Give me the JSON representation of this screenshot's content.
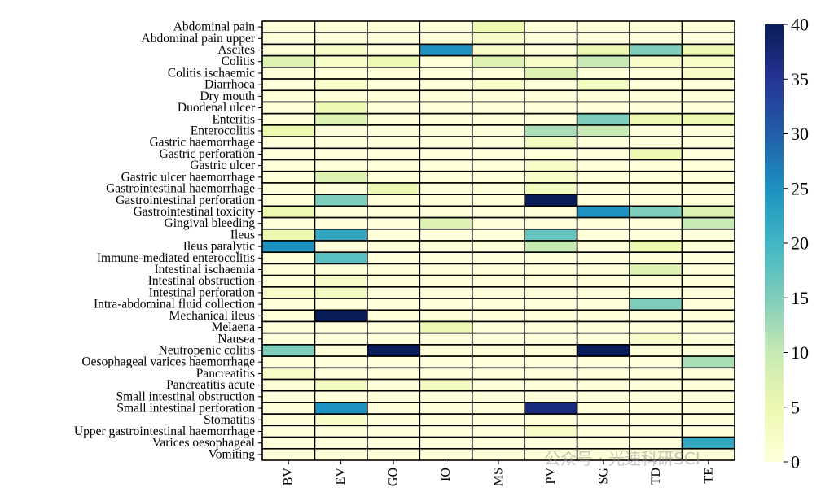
{
  "chart_data": {
    "type": "heatmap",
    "title": "",
    "xlabel": "",
    "ylabel": "",
    "columns": [
      "BV",
      "EV",
      "GO",
      "IO",
      "MS",
      "PV",
      "SG",
      "TD",
      "TE"
    ],
    "rows": [
      "Abdominal pain",
      "Abdominal pain upper",
      "Ascites",
      "Colitis",
      "Colitis ischaemic",
      "Diarrhoea",
      "Dry mouth",
      "Duodenal ulcer",
      "Enteritis",
      "Enterocolitis",
      "Gastric haemorrhage",
      "Gastric perforation",
      "Gastric ulcer",
      "Gastric ulcer haemorrhage",
      "Gastrointestinal haemorrhage",
      "Gastrointestinal perforation",
      "Gastrointestinal toxicity",
      "Gingival bleeding",
      "Ileus",
      "Ileus paralytic",
      "Immune-mediated enterocolitis",
      "Intestinal ischaemia",
      "Intestinal obstruction",
      "Intestinal perforation",
      "Intra-abdominal fluid collection",
      "Mechanical ileus",
      "Melaena",
      "Nausea",
      "Neutropenic colitis",
      "Oesophageal varices haemorrhage",
      "Pancreatitis",
      "Pancreatitis acute",
      "Small intestinal obstruction",
      "Small intestinal perforation",
      "Stomatitis",
      "Upper gastrointestinal haemorrhage",
      "Varices oesophageal",
      "Vomiting"
    ],
    "values": [
      [
        0,
        0,
        0,
        0,
        5,
        0,
        0,
        0,
        0
      ],
      [
        0,
        0,
        0,
        0,
        2,
        0,
        0,
        0,
        0
      ],
      [
        0,
        2,
        0,
        25,
        2,
        0,
        5,
        15,
        5
      ],
      [
        7,
        2,
        5,
        0,
        7,
        2,
        10,
        2,
        2
      ],
      [
        0,
        0,
        0,
        0,
        0,
        7,
        0,
        0,
        2
      ],
      [
        0,
        2,
        0,
        0,
        2,
        0,
        3,
        0,
        0
      ],
      [
        0,
        0,
        0,
        0,
        0,
        0,
        0,
        0,
        0
      ],
      [
        0,
        5,
        0,
        0,
        0,
        0,
        0,
        0,
        0
      ],
      [
        0,
        7,
        0,
        0,
        0,
        0,
        15,
        5,
        5
      ],
      [
        5,
        0,
        0,
        0,
        0,
        12,
        10,
        0,
        0
      ],
      [
        0,
        0,
        0,
        0,
        0,
        3,
        0,
        0,
        0
      ],
      [
        0,
        0,
        0,
        0,
        0,
        0,
        0,
        5,
        0
      ],
      [
        0,
        0,
        0,
        0,
        0,
        2,
        0,
        0,
        0
      ],
      [
        0,
        7,
        0,
        0,
        0,
        2,
        0,
        0,
        0
      ],
      [
        0,
        0,
        5,
        0,
        0,
        3,
        0,
        0,
        0
      ],
      [
        0,
        15,
        0,
        0,
        0,
        40,
        0,
        0,
        0
      ],
      [
        5,
        0,
        0,
        0,
        0,
        0,
        25,
        15,
        7
      ],
      [
        0,
        0,
        0,
        7,
        0,
        0,
        0,
        0,
        10
      ],
      [
        5,
        22,
        0,
        0,
        0,
        17,
        0,
        0,
        0
      ],
      [
        25,
        0,
        0,
        0,
        0,
        10,
        0,
        5,
        0
      ],
      [
        0,
        18,
        0,
        0,
        0,
        0,
        0,
        0,
        0
      ],
      [
        0,
        0,
        0,
        0,
        0,
        0,
        0,
        7,
        0
      ],
      [
        0,
        2,
        0,
        0,
        0,
        0,
        0,
        0,
        0
      ],
      [
        2,
        3,
        0,
        0,
        0,
        0,
        0,
        0,
        0
      ],
      [
        0,
        0,
        0,
        0,
        0,
        0,
        0,
        15,
        0
      ],
      [
        0,
        40,
        0,
        0,
        0,
        0,
        0,
        0,
        0
      ],
      [
        0,
        0,
        0,
        5,
        0,
        0,
        0,
        0,
        0
      ],
      [
        0,
        0,
        0,
        0,
        0,
        0,
        0,
        2,
        0
      ],
      [
        15,
        0,
        40,
        0,
        0,
        0,
        40,
        0,
        0
      ],
      [
        0,
        0,
        0,
        0,
        0,
        0,
        0,
        0,
        12
      ],
      [
        2,
        0,
        0,
        0,
        0,
        0,
        0,
        0,
        0
      ],
      [
        0,
        3,
        0,
        3,
        0,
        0,
        0,
        0,
        0
      ],
      [
        0,
        0,
        0,
        0,
        0,
        0,
        0,
        0,
        0
      ],
      [
        0,
        25,
        0,
        0,
        0,
        37,
        0,
        0,
        0
      ],
      [
        0,
        2,
        0,
        0,
        0,
        0,
        0,
        0,
        0
      ],
      [
        0,
        0,
        0,
        0,
        0,
        2,
        0,
        0,
        0
      ],
      [
        0,
        0,
        0,
        0,
        0,
        0,
        0,
        0,
        22
      ],
      [
        0,
        0,
        0,
        0,
        0,
        0,
        0,
        0,
        0
      ]
    ],
    "vmin": 0,
    "vmax": 40,
    "colorbar_ticks": [
      0,
      5,
      10,
      15,
      20,
      25,
      30,
      35,
      40
    ],
    "colormap": [
      "#ffffd9",
      "#edf8b1",
      "#c7e9b4",
      "#7fcdbb",
      "#41b6c4",
      "#1d91c0",
      "#225ea8",
      "#253494",
      "#081d58"
    ]
  },
  "watermark": "公众号 · 光速科研SCI"
}
